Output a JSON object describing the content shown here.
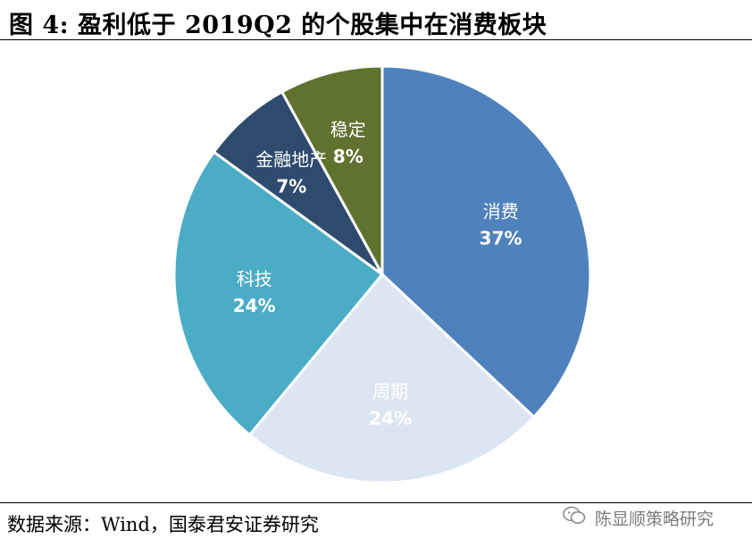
{
  "title": "图 4: 盈利低于 2019Q2 的个股集中在消费板块",
  "source": "数据来源：Wind，国泰君安证券研究",
  "watermark": {
    "icon": "wechat-icon",
    "text": "陈显顺策略研究"
  },
  "chart_data": {
    "type": "pie",
    "title": "",
    "slices": [
      {
        "label": "消费",
        "value": 37,
        "display": "37%",
        "color": "#4f81bd"
      },
      {
        "label": "周期",
        "value": 24,
        "display": "24%",
        "color": "#dce6f2"
      },
      {
        "label": "科技",
        "value": 24,
        "display": "24%",
        "color": "#4bacc6"
      },
      {
        "label": "金融地产",
        "value": 7,
        "display": "7%",
        "color": "#2e4b6e"
      },
      {
        "label": "稳定",
        "value": 8,
        "display": "8%",
        "color": "#5f722f"
      }
    ],
    "start_angle_deg": 0,
    "direction": "clockwise",
    "legend": "none"
  }
}
